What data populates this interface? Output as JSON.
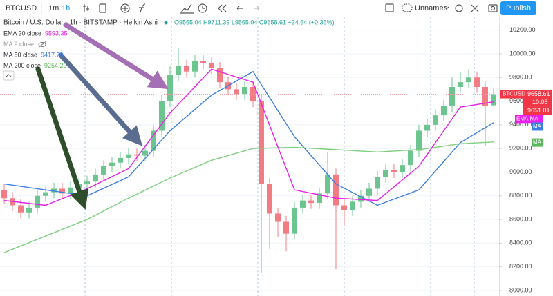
{
  "toolbar": {
    "symbol": "BTCUSD",
    "intervals": [
      "1m",
      "1h"
    ],
    "layout_name": "Unnamed",
    "publish": "Publish"
  },
  "legend": {
    "title": "Bitcoin / U.S. Dollar · 1h · BITSTAMP · Heikin Ashi",
    "ohlc": "O9565.04 H9711.39 L9565.04 C9658.61 +34.64 (+0.36%)",
    "indicators": [
      {
        "name": "EMA 20 close",
        "value": 9593.35,
        "color": "#e91ee8"
      },
      {
        "name": "MA 9 close",
        "color": "#999999"
      },
      {
        "name": "MA 50 close",
        "value": 9417.79,
        "color": "#3d7fe0"
      },
      {
        "name": "MA 200 close",
        "value": 9254.29,
        "color": "#5cb85c"
      }
    ]
  },
  "chart_data": {
    "type": "candlestick",
    "up_color": "#6cc58f",
    "down_color": "#f27c84",
    "candles": {
      "open": [
        8850,
        8780,
        8720,
        8660,
        8700,
        8800,
        8830,
        8860,
        8820,
        8870,
        8900,
        8920,
        8980,
        9050,
        9080,
        9120,
        9150,
        9140,
        9180,
        9350,
        9600,
        9820,
        9900,
        9850,
        9940,
        9920,
        9880,
        9760,
        9700,
        9660,
        9720,
        9600,
        8900,
        8650,
        8580,
        8480,
        8700,
        8760,
        8740,
        8820,
        8980,
        8720,
        8680,
        8750,
        8800,
        8860,
        8960,
        9020,
        9000,
        9060,
        9180,
        9350,
        9400,
        9480,
        9560,
        9720,
        9760,
        9800,
        9720,
        9565.04
      ],
      "high": [
        8900,
        8830,
        8770,
        8750,
        8850,
        8880,
        8910,
        8910,
        8920,
        8950,
        8970,
        9030,
        9100,
        9130,
        9170,
        9200,
        9200,
        9230,
        9400,
        9650,
        9900,
        10050,
        9950,
        9990,
        9990,
        9970,
        9930,
        9810,
        9750,
        9770,
        9770,
        9650,
        8950,
        8700,
        8630,
        8750,
        8810,
        8810,
        8870,
        9170,
        9030,
        8770,
        8800,
        8850,
        8910,
        9010,
        9070,
        9070,
        9110,
        9230,
        9400,
        9450,
        9530,
        9610,
        9800,
        9850,
        9870,
        9850,
        9770,
        9711.39
      ],
      "low": [
        8730,
        8670,
        8610,
        8610,
        8650,
        8750,
        8780,
        8770,
        8770,
        8820,
        8850,
        8870,
        8930,
        9000,
        9030,
        9070,
        9090,
        9090,
        9130,
        9300,
        9550,
        9770,
        9800,
        9800,
        9870,
        9830,
        9710,
        9650,
        9610,
        9610,
        9550,
        8150,
        8350,
        8450,
        8330,
        8430,
        8650,
        8690,
        8690,
        8770,
        8180,
        8550,
        8630,
        8700,
        8750,
        8810,
        8910,
        8950,
        8950,
        9010,
        9130,
        9300,
        9350,
        9430,
        9510,
        9670,
        9710,
        9670,
        9220,
        9565.04
      ],
      "close": [
        8780,
        8720,
        8660,
        8700,
        8800,
        8830,
        8860,
        8820,
        8870,
        8900,
        8920,
        8980,
        9050,
        9080,
        9120,
        9150,
        9140,
        9180,
        9350,
        9600,
        9820,
        9900,
        9850,
        9940,
        9920,
        9880,
        9760,
        9700,
        9660,
        9720,
        9600,
        8900,
        8650,
        8580,
        8480,
        8700,
        8760,
        8740,
        8820,
        8980,
        8720,
        8680,
        8750,
        8800,
        8860,
        8960,
        9020,
        9000,
        9060,
        9180,
        9350,
        9400,
        9480,
        9560,
        9720,
        9760,
        9800,
        9720,
        9560,
        9658.61
      ]
    },
    "lines": [
      {
        "color": "#3d7fe0",
        "x": [
          0,
          5,
          10,
          15,
          20,
          25,
          30,
          35,
          40,
          45,
          50,
          55,
          59
        ],
        "values": [
          8900,
          8850,
          8800,
          8960,
          9350,
          9650,
          9850,
          9300,
          8900,
          8720,
          8850,
          9250,
          9417.79
        ]
      },
      {
        "color": "#7fcf7f",
        "x": [
          0,
          5,
          10,
          15,
          20,
          25,
          30,
          35,
          40,
          45,
          50,
          55,
          59
        ],
        "values": [
          8320,
          8460,
          8600,
          8780,
          8950,
          9100,
          9200,
          9210,
          9190,
          9170,
          9190,
          9240,
          9254.29
        ]
      },
      {
        "color": "#e91ee8",
        "x": [
          0,
          5,
          10,
          15,
          20,
          25,
          30,
          35,
          40,
          45,
          50,
          55,
          59
        ],
        "values": [
          8760,
          8720,
          8860,
          9030,
          9500,
          9870,
          9760,
          8850,
          8780,
          8760,
          9050,
          9550,
          9593.35
        ]
      }
    ],
    "ylim": [
      7953,
      10309
    ],
    "yticks": [
      {
        "value": 8000,
        "label": "8000.00"
      },
      {
        "value": 8200,
        "label": "8200.00"
      },
      {
        "value": 8400,
        "label": "8400.00"
      },
      {
        "value": 8600,
        "label": "8600.00"
      },
      {
        "value": 8800,
        "label": "8800.00"
      },
      {
        "value": 9000,
        "label": "9000.00"
      },
      {
        "value": 9200,
        "label": "9200.00"
      },
      {
        "value": 9400,
        "label": "9400.00"
      },
      {
        "value": 9600,
        "label": "9600.00"
      },
      {
        "value": 9800,
        "label": "9800.00"
      },
      {
        "value": 10000,
        "label": "10000.00"
      },
      {
        "value": 10200,
        "label": "10200.00"
      }
    ],
    "grid": true,
    "last_price": {
      "symbol": "BTCUSD",
      "value": 9658.61,
      "countdown": "10:05",
      "second": 9651.01
    },
    "badges": [
      {
        "label": "EMA:MA",
        "value": 9450,
        "color": "#e91ee8"
      },
      {
        "label": "MA",
        "value": 9385,
        "color": "#3d7fe0"
      },
      {
        "label": "MA",
        "value": 9250,
        "color": "#5cb85c"
      }
    ]
  }
}
